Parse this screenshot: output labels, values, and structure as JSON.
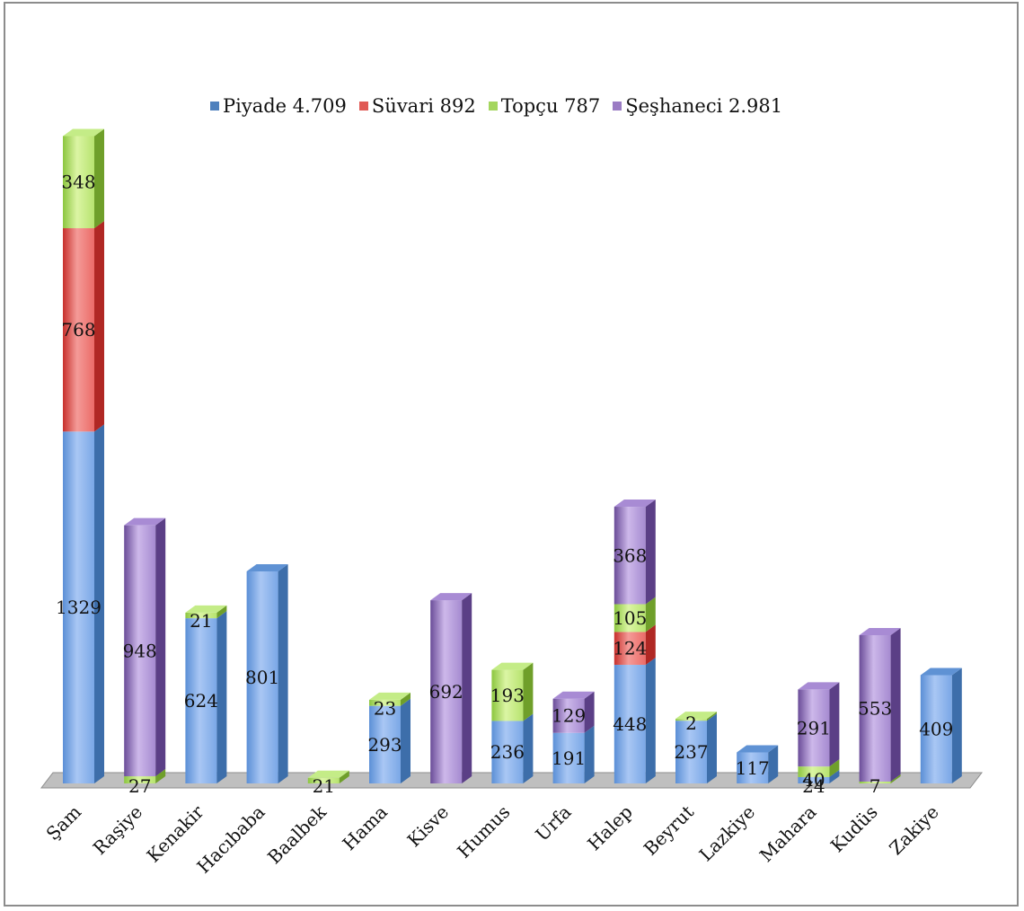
{
  "chart_data": {
    "type": "bar",
    "stacked": true,
    "three_d": true,
    "legend_position": "top",
    "categories": [
      "Şam",
      "Raşiye",
      "Kenakir",
      "Hacıbaba",
      "Baalbek",
      "Hama",
      "Kisve",
      "Humus",
      "Urfa",
      "Halep",
      "Beyrut",
      "Lazkiye",
      "Mahara",
      "Kudüs",
      "Zakiye"
    ],
    "series": [
      {
        "name": "Piyade 4.709",
        "color": "#4f81bd",
        "values": [
          1329,
          null,
          624,
          801,
          null,
          293,
          null,
          236,
          191,
          448,
          237,
          117,
          24,
          null,
          409
        ]
      },
      {
        "name": "Süvari 892",
        "color": "#c0504d",
        "values": [
          768,
          null,
          null,
          null,
          null,
          null,
          null,
          null,
          null,
          124,
          null,
          null,
          null,
          null,
          null
        ]
      },
      {
        "name": "Topçu 787",
        "color": "#9bbb59",
        "values": [
          348,
          27,
          21,
          null,
          21,
          23,
          null,
          193,
          null,
          105,
          2,
          null,
          40,
          7,
          null
        ]
      },
      {
        "name": "Şeşhaneci 2.981",
        "color": "#8064a2",
        "values": [
          null,
          948,
          null,
          null,
          null,
          null,
          692,
          null,
          129,
          368,
          null,
          null,
          291,
          553,
          null
        ]
      }
    ]
  }
}
